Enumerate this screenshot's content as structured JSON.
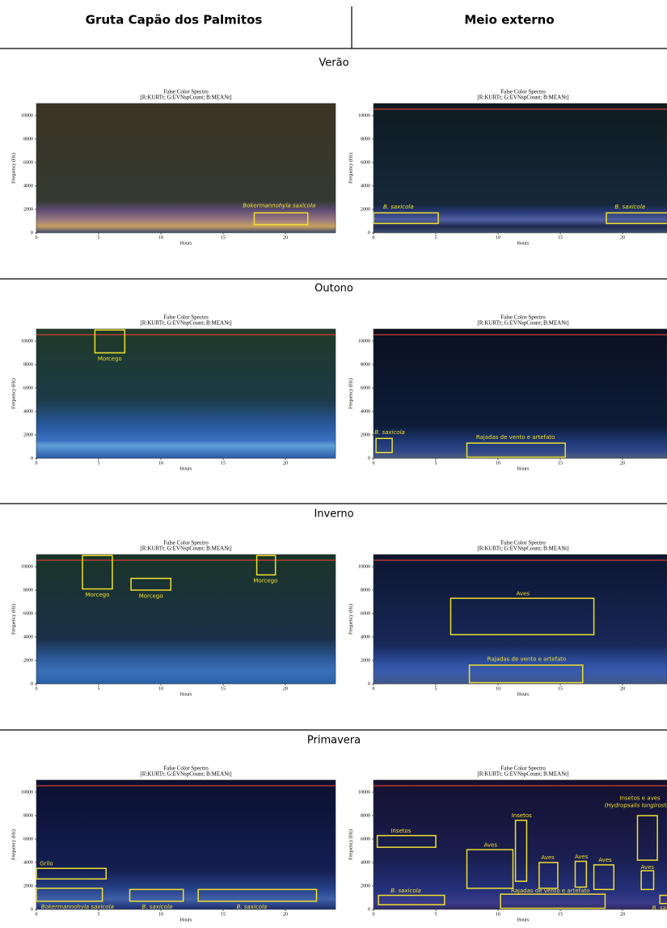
{
  "header": {
    "columns": [
      "Gruta Capão dos Palmitos",
      "Meio externo"
    ]
  },
  "panel_title": [
    "False Color Spectro",
    "[R:KURTt; G:EVNspCount; B:MEANt]"
  ],
  "axes": {
    "x_label": "Hours",
    "y_label": "Frequency (Hz)",
    "xticks": [
      0,
      5,
      10,
      15,
      20
    ],
    "yticks": [
      0,
      2000,
      4000,
      6000,
      8000,
      10000
    ]
  },
  "seasons": [
    {
      "name": "Verão",
      "panels": [
        {
          "annotations": [
            "Bokermannohyla saxicola"
          ]
        },
        {
          "annotations": [
            "B. saxicola",
            "B. saxicola"
          ]
        }
      ]
    },
    {
      "name": "Outono",
      "panels": [
        {
          "annotations": [
            "Morcego"
          ]
        },
        {
          "annotations": [
            "B. saxicola",
            "Rajadas de vento e artefato"
          ]
        }
      ]
    },
    {
      "name": "Inverno",
      "panels": [
        {
          "annotations": [
            "Morcego",
            "Morcego",
            "Morcego"
          ]
        },
        {
          "annotations": [
            "Aves",
            "Rajadas de vento e artefato"
          ]
        }
      ]
    },
    {
      "name": "Primavera",
      "panels": [
        {
          "annotations": [
            "Grilo",
            "Bokermannohyla saxicola",
            "B. saxicola",
            "B. saxicola"
          ]
        },
        {
          "annotations": [
            "Insetos",
            "B. saxicola",
            "Aves",
            "Insetos",
            "Aves",
            "Aves",
            "Aves",
            [
              "Insetos e aves",
              "(Hydropsalis longirostris)"
            ],
            "Aves",
            "Rajadas de vento e artefato",
            "B. saxicola"
          ]
        }
      ]
    }
  ]
}
